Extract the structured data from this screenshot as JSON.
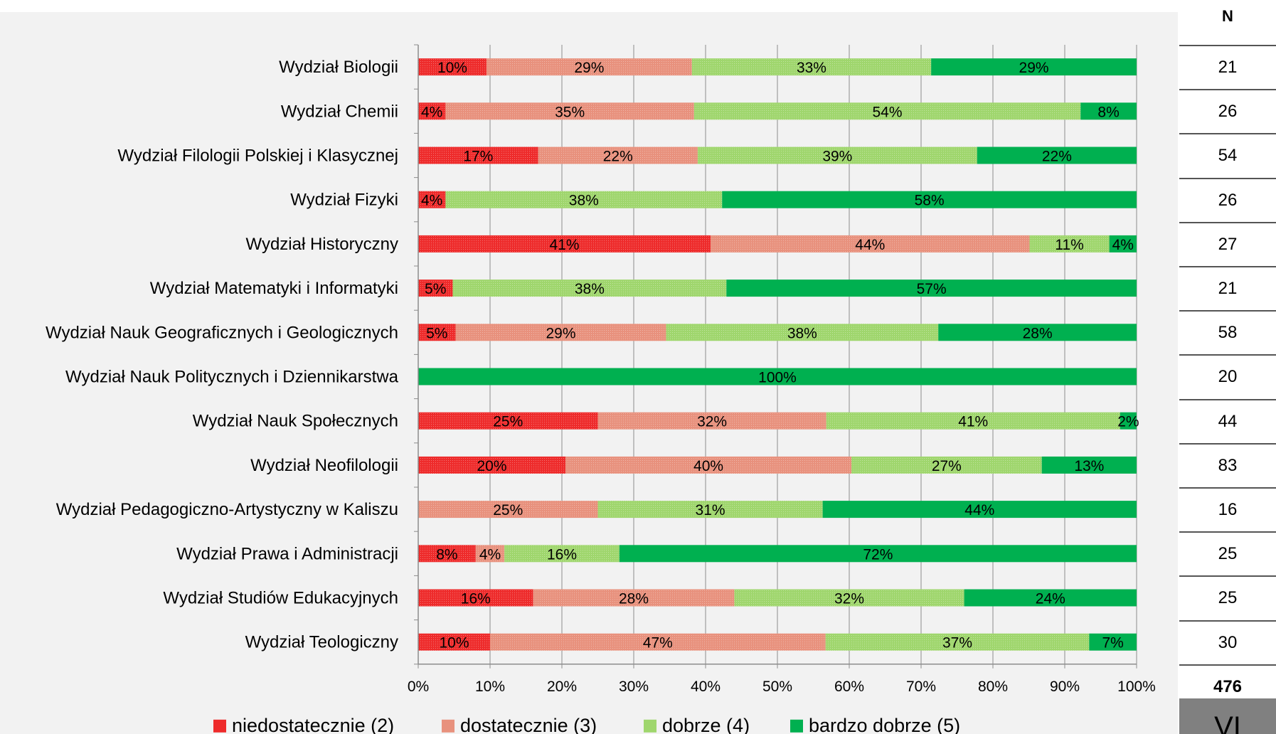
{
  "chart_data": {
    "type": "bar",
    "orientation": "horizontal",
    "stacked": "percent",
    "xlim": [
      0,
      100
    ],
    "x_ticks": [
      "0%",
      "10%",
      "20%",
      "30%",
      "40%",
      "50%",
      "60%",
      "70%",
      "80%",
      "90%",
      "100%"
    ],
    "grid": true,
    "legend_position": "bottom",
    "categories": [
      "Wydział Biologii",
      "Wydział Chemii",
      "Wydział Filologii Polskiej i Klasycznej",
      "Wydział Fizyki",
      "Wydział Historyczny",
      "Wydział Matematyki i Informatyki",
      "Wydział Nauk Geograficznych i Geologicznych",
      "Wydział Nauk Politycznych i Dziennikarstwa",
      "Wydział Nauk Społecznych",
      "Wydział Neofilologii",
      "Wydział Pedagogiczno-Artystyczny w Kaliszu",
      "Wydział Prawa i Administracji",
      "Wydział Studiów Edukacyjnych",
      "Wydział Teologiczny"
    ],
    "series": [
      {
        "name": "niedostatecznie (2)",
        "color": "#ee2b2b",
        "values": [
          9.5,
          3.8,
          16.7,
          3.8,
          40.7,
          4.8,
          5.2,
          0,
          25.0,
          20.5,
          0,
          8.0,
          16.0,
          10.0
        ],
        "labels": [
          "10%",
          "4%",
          "17%",
          "4%",
          "41%",
          "5%",
          "5%",
          "",
          "25%",
          "20%",
          "",
          "8%",
          "16%",
          "10%"
        ]
      },
      {
        "name": "dostatecznie (3)",
        "color": "#e8917d",
        "values": [
          28.6,
          34.6,
          22.2,
          0,
          44.4,
          0,
          29.3,
          0,
          31.8,
          39.8,
          25.0,
          4.0,
          28.0,
          46.7
        ],
        "labels": [
          "29%",
          "35%",
          "22%",
          "",
          "44%",
          "",
          "29%",
          "",
          "32%",
          "40%",
          "25%",
          "4%",
          "28%",
          "47%"
        ]
      },
      {
        "name": "dobrze (4)",
        "color": "#9fd66d",
        "values": [
          33.3,
          53.8,
          38.9,
          38.5,
          11.1,
          38.1,
          37.9,
          0,
          40.9,
          26.5,
          31.3,
          16.0,
          32.0,
          36.7
        ],
        "labels": [
          "33%",
          "54%",
          "39%",
          "38%",
          "11%",
          "38%",
          "38%",
          "",
          "41%",
          "27%",
          "31%",
          "16%",
          "32%",
          "37%"
        ]
      },
      {
        "name": "bardzo dobrze (5)",
        "color": "#00b050",
        "values": [
          28.6,
          7.8,
          22.2,
          57.7,
          3.8,
          57.1,
          27.6,
          100,
          2.3,
          13.2,
          43.7,
          72.0,
          24.0,
          6.6
        ],
        "labels": [
          "29%",
          "8%",
          "22%",
          "58%",
          "4%",
          "57%",
          "28%",
          "100%",
          "2%",
          "13%",
          "44%",
          "72%",
          "24%",
          "7%"
        ]
      }
    ]
  },
  "n_table": {
    "header": "N",
    "values": [
      "21",
      "26",
      "54",
      "26",
      "27",
      "21",
      "58",
      "20",
      "44",
      "83",
      "16",
      "25",
      "25",
      "30"
    ],
    "total": "476",
    "footer": "VI"
  }
}
